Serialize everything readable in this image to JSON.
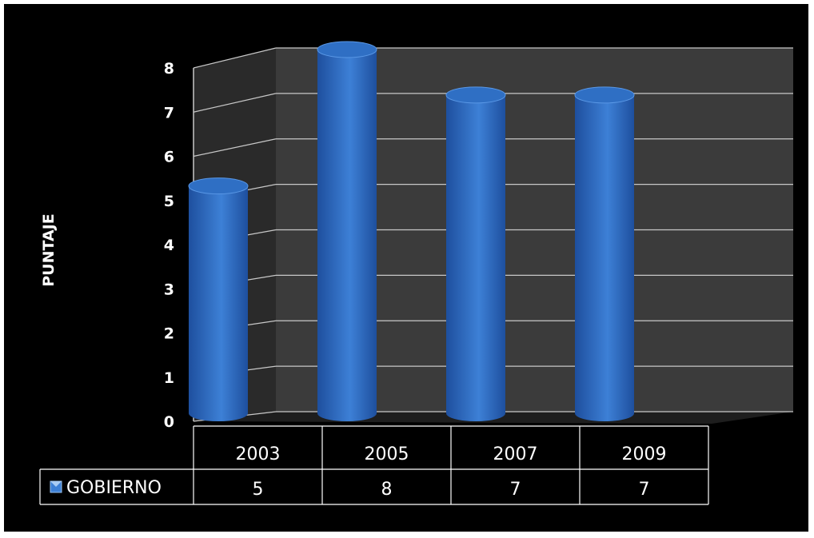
{
  "chart_data": {
    "type": "bar",
    "categories": [
      "2003",
      "2005",
      "2007",
      "2009"
    ],
    "series": [
      {
        "name": "GOBIERNO",
        "values": [
          5,
          8,
          7,
          7
        ]
      }
    ],
    "title": "",
    "xlabel": "",
    "ylabel": "PUNTAJE",
    "ylim": [
      0,
      8
    ],
    "yticks": [
      "0",
      "1",
      "2",
      "3",
      "4",
      "5",
      "6",
      "7",
      "8"
    ],
    "grid": true,
    "legend": "data-table",
    "bar_shape": "cylinder-3d",
    "colors": {
      "background": "#000000",
      "bar": "#3d80d6",
      "bar_dark": "#1e4f9e",
      "bar_top": "#2f6fc4",
      "wall": "#3b3b3b",
      "side_wall": "#2a2a2a",
      "grid": "#c8c8c8",
      "table_border": "#ffffff"
    }
  }
}
